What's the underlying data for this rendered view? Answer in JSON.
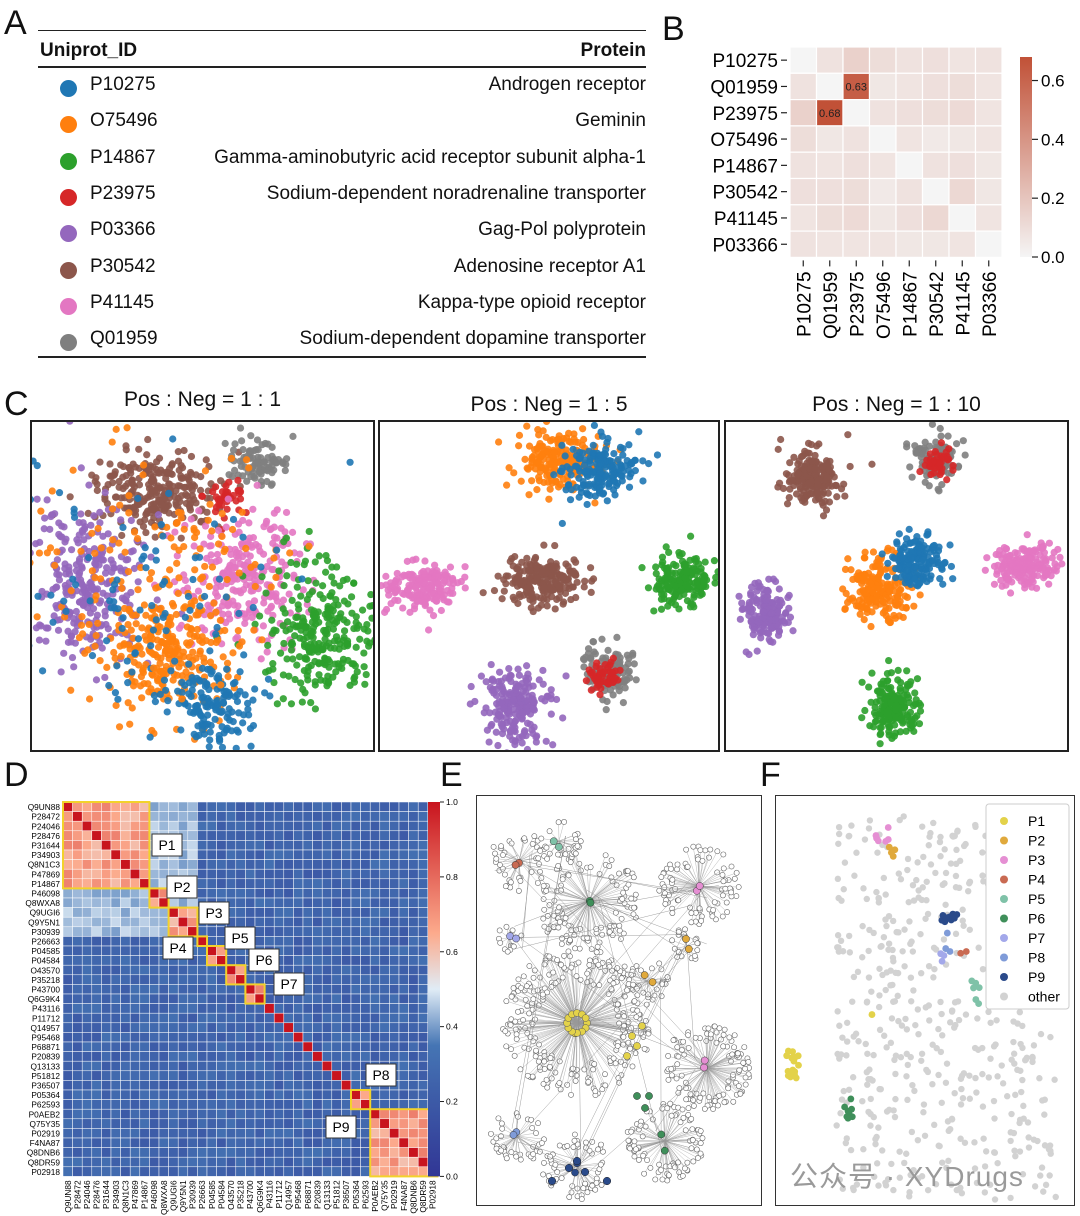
{
  "panels": {
    "a": "A",
    "b": "B",
    "c": "C",
    "d": "D",
    "e": "E",
    "f": "F"
  },
  "table": {
    "col_id": "Uniprot_ID",
    "col_protein": "Protein",
    "rows": [
      {
        "id": "P10275",
        "protein": "Androgen receptor",
        "color": "#1f77b4"
      },
      {
        "id": "O75496",
        "protein": "Geminin",
        "color": "#ff7f0e"
      },
      {
        "id": "P14867",
        "protein": "Gamma-aminobutyric acid receptor subunit alpha-1",
        "color": "#2ca02c"
      },
      {
        "id": "P23975",
        "protein": "Sodium-dependent noradrenaline transporter",
        "color": "#d62728"
      },
      {
        "id": "P03366",
        "protein": "Gag-Pol polyprotein",
        "color": "#9467bd"
      },
      {
        "id": "P30542",
        "protein": "Adenosine receptor A1",
        "color": "#8c564b"
      },
      {
        "id": "P41145",
        "protein": "Kappa-type opioid receptor",
        "color": "#e377c2"
      },
      {
        "id": "Q01959",
        "protein": "Sodium-dependent dopamine transporter",
        "color": "#7f7f7f"
      }
    ]
  },
  "scatter_titles": [
    "Pos : Neg = 1 : 1",
    "Pos : Neg = 1 : 5",
    "Pos : Neg = 1 : 10"
  ],
  "cluster_labels": [
    "P1",
    "P2",
    "P3",
    "P4",
    "P5",
    "P6",
    "P7",
    "P8",
    "P9"
  ],
  "legend_f": [
    {
      "label": "P1",
      "color": "#e3d24a"
    },
    {
      "label": "P2",
      "color": "#e0a93c"
    },
    {
      "label": "P3",
      "color": "#e58fd3"
    },
    {
      "label": "P4",
      "color": "#c96a52"
    },
    {
      "label": "P5",
      "color": "#7fc2a8"
    },
    {
      "label": "P6",
      "color": "#3f8f5a"
    },
    {
      "label": "P7",
      "color": "#a3a8ea"
    },
    {
      "label": "P8",
      "color": "#7f9bd8"
    },
    {
      "label": "P9",
      "color": "#2a4a8a"
    },
    {
      "label": "other",
      "color": "#d2d2d2"
    }
  ],
  "watermark": "公众号 · XYDrugs",
  "chart_data": [
    {
      "type": "heatmap",
      "panel": "B",
      "rows": [
        "P10275",
        "Q01959",
        "P23975",
        "O75496",
        "P14867",
        "P30542",
        "P41145",
        "P03366"
      ],
      "cols": [
        "P10275",
        "Q01959",
        "P23975",
        "O75496",
        "P14867",
        "P30542",
        "P41145",
        "P03366"
      ],
      "values": [
        [
          0.0,
          0.08,
          0.15,
          0.1,
          0.08,
          0.09,
          0.07,
          0.08
        ],
        [
          0.08,
          0.0,
          0.63,
          0.06,
          0.07,
          0.09,
          0.1,
          0.07
        ],
        [
          0.15,
          0.68,
          0.0,
          0.08,
          0.09,
          0.1,
          0.11,
          0.07
        ],
        [
          0.1,
          0.06,
          0.08,
          0.0,
          0.07,
          0.05,
          0.06,
          0.07
        ],
        [
          0.08,
          0.07,
          0.09,
          0.07,
          0.0,
          0.08,
          0.09,
          0.06
        ],
        [
          0.09,
          0.09,
          0.1,
          0.05,
          0.08,
          0.0,
          0.12,
          0.06
        ],
        [
          0.07,
          0.1,
          0.11,
          0.06,
          0.09,
          0.12,
          0.0,
          0.07
        ],
        [
          0.08,
          0.07,
          0.07,
          0.07,
          0.06,
          0.06,
          0.07,
          0.0
        ]
      ],
      "annotations": [
        {
          "row": "Q01959",
          "col": "P23975",
          "text": "0.63"
        },
        {
          "row": "P23975",
          "col": "Q01959",
          "text": "0.68"
        }
      ],
      "colorbar_ticks": [
        "0.0",
        "0.2",
        "0.4",
        "0.6"
      ],
      "vmin": 0.0,
      "vmax": 0.68
    },
    {
      "type": "heatmap",
      "panel": "D",
      "row_labels": [
        "Q9UN88",
        "P28472",
        "P24046",
        "P28476",
        "P31644",
        "P34903",
        "Q8N1C3",
        "P47869",
        "P14867",
        "P46098",
        "Q8WXA8",
        "Q9UGI6",
        "Q9Y5N1",
        "P30939",
        "P26663",
        "P04585",
        "P04584",
        "O43570",
        "P35218",
        "P43700",
        "Q6G9K4",
        "P43116",
        "P11712",
        "Q14957",
        "P95468",
        "P68871",
        "P20839",
        "Q13133",
        "P51812",
        "P36507",
        "P05364",
        "P62593",
        "P0AEB2",
        "Q75Y35",
        "P02919",
        "F4NA87",
        "Q8DNB6",
        "Q8DR59",
        "P02918"
      ],
      "col_labels": [
        "Q9UN88",
        "P28472",
        "P24046",
        "P28476",
        "P31644",
        "P34903",
        "Q8N1C3",
        "P47869",
        "P14867",
        "P46098",
        "Q8WXA8",
        "Q9UGI6",
        "Q9Y5N1",
        "P30939",
        "P26663",
        "P04585",
        "P04584",
        "O43570",
        "P35218",
        "P43700",
        "Q6G9K4",
        "P43116",
        "P11712",
        "Q14957",
        "P95468",
        "P68871",
        "P20839",
        "Q13133",
        "P51812",
        "P36507",
        "P05364",
        "P62593",
        "P0AEB2",
        "Q75Y35",
        "P02919",
        "F4NA87",
        "Q8DNB6",
        "Q8DR59",
        "P02918"
      ],
      "clusters": [
        {
          "label": "P1",
          "start": 0,
          "end": 8
        },
        {
          "label": "P2",
          "start": 9,
          "end": 10
        },
        {
          "label": "P3",
          "start": 11,
          "end": 13
        },
        {
          "label": "P4",
          "start": 14,
          "end": 14
        },
        {
          "label": "P5",
          "start": 15,
          "end": 16
        },
        {
          "label": "P6",
          "start": 17,
          "end": 18
        },
        {
          "label": "P7",
          "start": 19,
          "end": 20
        },
        {
          "label": "P8",
          "start": 30,
          "end": 31
        },
        {
          "label": "P9",
          "start": 32,
          "end": 38
        }
      ],
      "colorbar_ticks": [
        "0.0",
        "0.2",
        "0.4",
        "0.6",
        "0.8",
        "1.0"
      ],
      "vmin": 0.0,
      "vmax": 1.0
    }
  ]
}
